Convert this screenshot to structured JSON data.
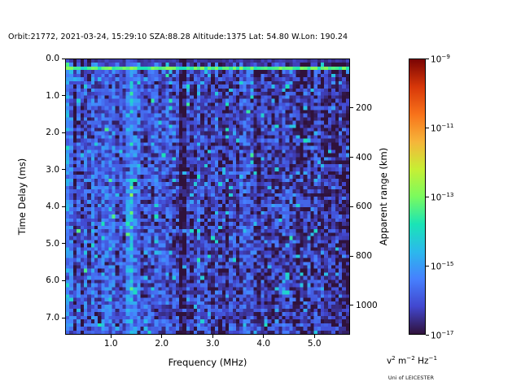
{
  "title": "Orbit:21772, 2021-03-24, 15:29:10 SZA:88.28 Altitude:1375 Lat: 54.80 W.Lon: 190.24",
  "credit": "Uni of LEICESTER",
  "chart_data": {
    "type": "heatmap",
    "description": "Radar sounder ionogram: received spectral power versus frequency and time delay, speckled blue noise background, bright cyan-green horizontal band near 0.2 ms delay, dark vertical absorption line near 2.4 MHz, brighter vertical streaks near 1.3-1.5 MHz, dark narrow lines near 0.27, 0.4 and 0.55 MHz",
    "xlabel": "Frequency (MHz)",
    "ylabel": "Time Delay (ms)",
    "y2label": "Apparent range (km)",
    "xlim": [
      0.1,
      5.7
    ],
    "ylim": [
      0.0,
      7.46
    ],
    "y2lim": [
      0,
      1119
    ],
    "x_ticks": {
      "vals": [
        1,
        2,
        3,
        4,
        5
      ],
      "labels": [
        "1.0",
        "2.0",
        "3.0",
        "4.0",
        "5.0"
      ]
    },
    "y_ticks": {
      "vals": [
        0,
        1,
        2,
        3,
        4,
        5,
        6,
        7
      ],
      "labels": [
        "0.0",
        "1.0",
        "2.0",
        "3.0",
        "4.0",
        "5.0",
        "6.0",
        "7.0"
      ]
    },
    "y2_ticks": {
      "vals": [
        200,
        400,
        600,
        800,
        1000
      ],
      "labels": [
        "200",
        "400",
        "600",
        "800",
        "1000"
      ]
    },
    "colorbar": {
      "scale": "log",
      "vmin_exp": -17,
      "vmax_exp": -9,
      "tick_exps": [
        -9,
        -11,
        -13,
        -15,
        -17
      ],
      "ticks": [
        {
          "mant": "10",
          "exp": "−9"
        },
        {
          "mant": "10",
          "exp": "−11"
        },
        {
          "mant": "10",
          "exp": "−13"
        },
        {
          "mant": "10",
          "exp": "−15"
        },
        {
          "mant": "10",
          "exp": "−17"
        }
      ],
      "unit_parts": [
        {
          "t": "v"
        },
        {
          "sup": "2"
        },
        {
          "t": " m"
        },
        {
          "sup": "−2"
        },
        {
          "t": " Hz"
        },
        {
          "sup": "−1"
        }
      ],
      "colormap": "turbo",
      "stops": [
        "#30123b",
        "#4247cf",
        "#4680fe",
        "#2bb9ec",
        "#1ae4b6",
        "#7afb5e",
        "#c7ef34",
        "#f6b53a",
        "#f8721a",
        "#d73709",
        "#7a0403"
      ]
    },
    "heatmap": {
      "cols": 80,
      "rows": 76,
      "seed": 20210324,
      "base_low_freq": 0.16,
      "base_high_freq": 0.06,
      "noise": 0.1,
      "column_jitter": 0.04,
      "bright_speckle_prob": 0.06,
      "bright_speckle_boost": 0.18,
      "dark_speckle_prob": 0.1,
      "dark_speckle_drop": 0.08,
      "vertical_bands": [
        {
          "f0": 0.1,
          "f1": 0.18,
          "boost": 0.1
        },
        {
          "f0": 0.24,
          "f1": 0.3,
          "boost": -0.13
        },
        {
          "f0": 0.36,
          "f1": 0.42,
          "boost": -0.11
        },
        {
          "f0": 0.52,
          "f1": 0.58,
          "boost": -0.09
        },
        {
          "f0": 1.28,
          "f1": 1.4,
          "boost": 0.11
        },
        {
          "f0": 1.44,
          "f1": 1.52,
          "boost": 0.07
        },
        {
          "f0": 2.36,
          "f1": 2.48,
          "boost": -0.15
        }
      ],
      "horizontal_bands": [
        {
          "d0": 0.0,
          "d1": 0.14,
          "set": 0.07,
          "jitter": 0.03
        },
        {
          "d0": 0.16,
          "d1": 0.34,
          "set": 0.46,
          "jitter": 0.07
        }
      ]
    }
  }
}
